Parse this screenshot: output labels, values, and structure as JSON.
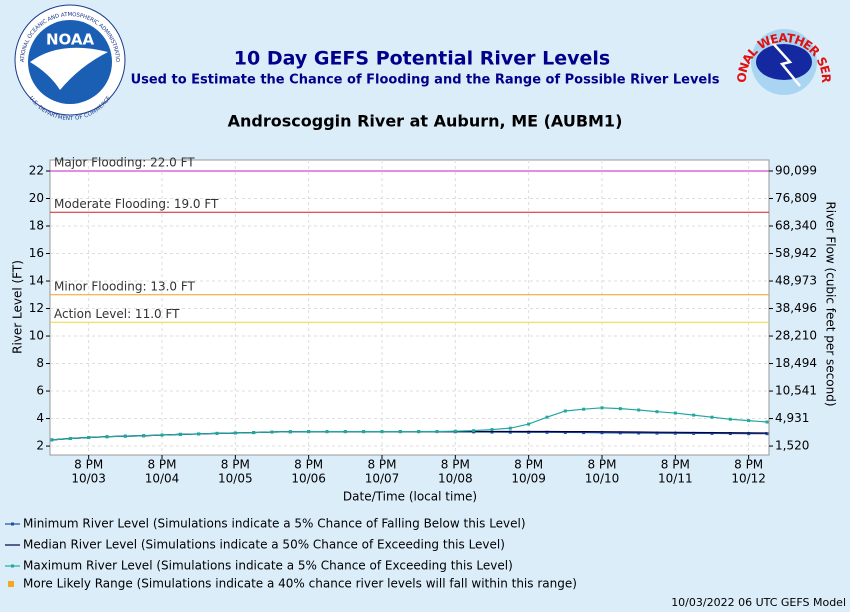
{
  "header": {
    "title": "10 Day GEFS Potential River Levels",
    "subtitle": "Used to Estimate the Chance of Flooding and the Range of Possible River Levels",
    "noaa": "NOAA",
    "noaa_top": "NATIONAL OCEANIC AND ATMOSPHERIC ADMINISTRATION",
    "noaa_bottom": "U.S. DEPARTMENT OF COMMERCE",
    "nws": "NATIONAL WEATHER SERVICE"
  },
  "footer": "10/03/2022 06 UTC GEFS Model",
  "chart_data": {
    "type": "line",
    "title": "Androscoggin River at Auburn, ME (AUBM1)",
    "x_label": "Date/Time (local time)",
    "y_label": "River Level (FT)",
    "y2_label": "River Flow (cubic feet per second)",
    "x": [
      "10/03 8 AM",
      "10/03 2 PM",
      "10/03 8 PM",
      "10/04 2 AM",
      "10/04 8 AM",
      "10/04 2 PM",
      "10/04 8 PM",
      "10/05 2 AM",
      "10/05 8 AM",
      "10/05 2 PM",
      "10/05 8 PM",
      "10/06 2 AM",
      "10/06 8 AM",
      "10/06 2 PM",
      "10/06 8 PM",
      "10/07 2 AM",
      "10/07 8 AM",
      "10/07 2 PM",
      "10/07 8 PM",
      "10/08 2 AM",
      "10/08 8 AM",
      "10/08 2 PM",
      "10/08 8 PM",
      "10/09 2 AM",
      "10/09 8 AM",
      "10/09 2 PM",
      "10/09 8 PM",
      "10/10 2 AM",
      "10/10 8 AM",
      "10/10 2 PM",
      "10/10 8 PM",
      "10/11 2 AM",
      "10/11 8 AM",
      "10/11 2 PM",
      "10/11 8 PM",
      "10/12 2 AM",
      "10/12 8 AM",
      "10/12 2 PM",
      "10/12 8 PM",
      "10/13 2 AM"
    ],
    "xticks": [
      {
        "value": "10/03 8 PM",
        "label": [
          "8 PM",
          "10/03"
        ]
      },
      {
        "value": "10/04 8 PM",
        "label": [
          "8 PM",
          "10/04"
        ]
      },
      {
        "value": "10/05 8 PM",
        "label": [
          "8 PM",
          "10/05"
        ]
      },
      {
        "value": "10/06 8 PM",
        "label": [
          "8 PM",
          "10/06"
        ]
      },
      {
        "value": "10/07 8 PM",
        "label": [
          "8 PM",
          "10/07"
        ]
      },
      {
        "value": "10/08 8 PM",
        "label": [
          "8 PM",
          "10/08"
        ]
      },
      {
        "value": "10/09 8 PM",
        "label": [
          "8 PM",
          "10/09"
        ]
      },
      {
        "value": "10/10 8 PM",
        "label": [
          "8 PM",
          "10/10"
        ]
      },
      {
        "value": "10/11 8 PM",
        "label": [
          "8 PM",
          "10/11"
        ]
      },
      {
        "value": "10/12 8 PM",
        "label": [
          "8 PM",
          "10/12"
        ]
      }
    ],
    "ylim": [
      1.35,
      22.8
    ],
    "yticks": [
      2,
      4,
      6,
      8,
      10,
      12,
      14,
      16,
      18,
      20,
      22
    ],
    "y2ticks": [
      {
        "value": 1520,
        "label": "1,520"
      },
      {
        "value": 4931,
        "label": "4,931"
      },
      {
        "value": 10541,
        "label": "10,541"
      },
      {
        "value": 18494,
        "label": "18,494"
      },
      {
        "value": 28210,
        "label": "28,210"
      },
      {
        "value": 38496,
        "label": "38,496"
      },
      {
        "value": 48973,
        "label": "48,973"
      },
      {
        "value": 58942,
        "label": "58,942"
      },
      {
        "value": 68340,
        "label": "68,340"
      },
      {
        "value": 76809,
        "label": "76,809"
      },
      {
        "value": 90099,
        "label": "90,099"
      }
    ],
    "grid": true,
    "thresholds": [
      {
        "label": "Major Flooding: 22.0 FT",
        "value": 22,
        "color": "#c020c0"
      },
      {
        "label": "Moderate Flooding: 19.0 FT",
        "value": 19,
        "color": "#d02020"
      },
      {
        "label": "Minor Flooding: 13.0 FT",
        "value": 13,
        "color": "#f0a020"
      },
      {
        "label": "Action Level: 11.0 FT",
        "value": 11,
        "color": "#e8d840"
      }
    ],
    "series": [
      {
        "name": "Minimum River Level (Simulations indicate a 5% Chance of Falling Below this Level)",
        "color": "#1f4fa0",
        "markers": true,
        "values": [
          2.45,
          2.55,
          2.62,
          2.68,
          2.72,
          2.75,
          2.8,
          2.85,
          2.88,
          2.92,
          2.95,
          2.98,
          3.02,
          3.04,
          3.05,
          3.05,
          3.05,
          3.05,
          3.05,
          3.05,
          3.05,
          3.05,
          3.04,
          3.03,
          3.02,
          3.01,
          3.0,
          3.0,
          2.99,
          2.98,
          2.97,
          2.96,
          2.95,
          2.94,
          2.93,
          2.92,
          2.92,
          2.91,
          2.9,
          2.9
        ]
      },
      {
        "name": "Median River Level (Simulations indicate a 50% Chance of Exceeding this Level)",
        "color": "#000040",
        "markers": false,
        "values": [
          2.45,
          2.55,
          2.62,
          2.68,
          2.72,
          2.75,
          2.8,
          2.85,
          2.88,
          2.92,
          2.95,
          2.98,
          3.02,
          3.04,
          3.05,
          3.05,
          3.05,
          3.05,
          3.05,
          3.05,
          3.05,
          3.05,
          3.05,
          3.05,
          3.06,
          3.06,
          3.06,
          3.06,
          3.05,
          3.05,
          3.04,
          3.03,
          3.02,
          3.01,
          3.0,
          2.99,
          2.98,
          2.97,
          2.96,
          2.95
        ]
      },
      {
        "name": "Maximum River Level (Simulations indicate a 5% Chance of Exceeding this Level)",
        "color": "#20a8a0",
        "markers": true,
        "values": [
          2.45,
          2.55,
          2.62,
          2.68,
          2.72,
          2.75,
          2.8,
          2.85,
          2.88,
          2.92,
          2.95,
          2.98,
          3.02,
          3.04,
          3.05,
          3.05,
          3.05,
          3.05,
          3.05,
          3.05,
          3.05,
          3.06,
          3.08,
          3.12,
          3.2,
          3.3,
          3.6,
          4.1,
          4.55,
          4.68,
          4.78,
          4.72,
          4.62,
          4.5,
          4.4,
          4.25,
          4.1,
          3.95,
          3.85,
          3.75
        ]
      }
    ],
    "range_legend": {
      "name": "More Likely Range (Simulations indicate a 40% chance river levels will fall within this range)",
      "color": "#f5a623"
    }
  }
}
